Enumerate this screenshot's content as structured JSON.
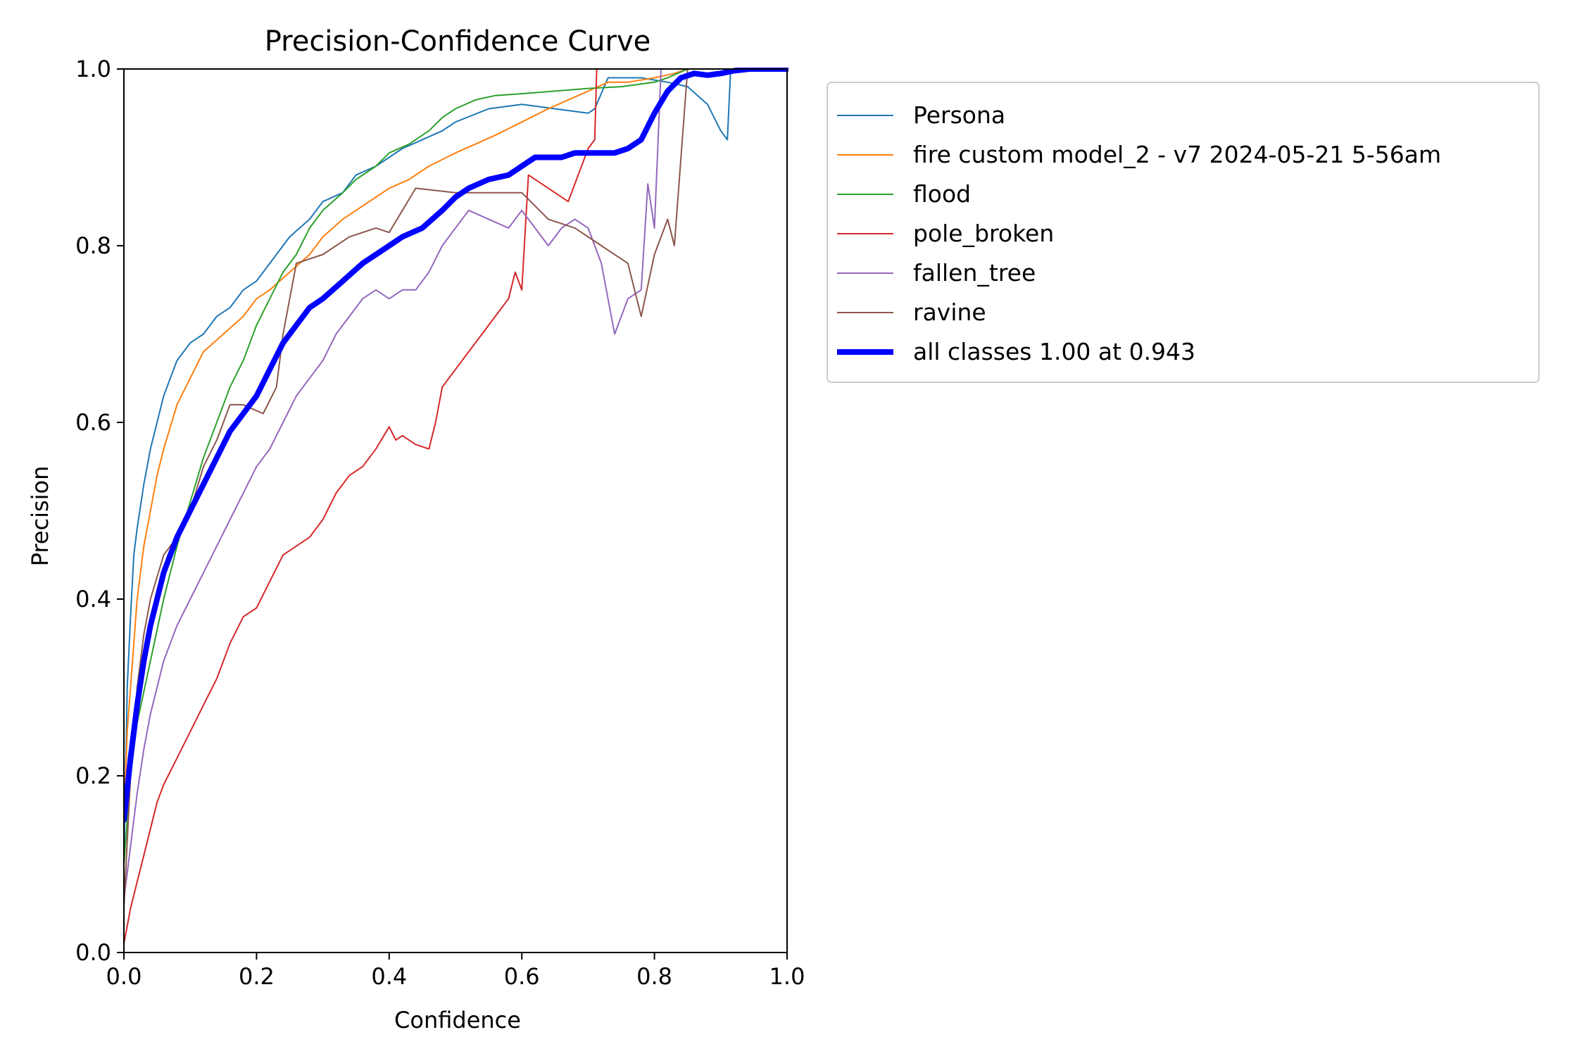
{
  "chart_data": {
    "type": "line",
    "title": "Precision-Confidence Curve",
    "xlabel": "Confidence",
    "ylabel": "Precision",
    "xlim": [
      0.0,
      1.0
    ],
    "ylim": [
      0.0,
      1.0
    ],
    "xticks": [
      "0.0",
      "0.2",
      "0.4",
      "0.6",
      "0.8",
      "1.0"
    ],
    "yticks": [
      "0.0",
      "0.2",
      "0.4",
      "0.6",
      "0.8",
      "1.0"
    ],
    "grid": false,
    "legend_position": "outside upper right",
    "series": [
      {
        "name": "Persona",
        "color": "#1f77b4",
        "points": [
          [
            0.0,
            0.1
          ],
          [
            0.005,
            0.3
          ],
          [
            0.01,
            0.38
          ],
          [
            0.015,
            0.45
          ],
          [
            0.02,
            0.48
          ],
          [
            0.03,
            0.53
          ],
          [
            0.04,
            0.57
          ],
          [
            0.05,
            0.6
          ],
          [
            0.06,
            0.63
          ],
          [
            0.07,
            0.65
          ],
          [
            0.08,
            0.67
          ],
          [
            0.1,
            0.69
          ],
          [
            0.12,
            0.7
          ],
          [
            0.14,
            0.72
          ],
          [
            0.16,
            0.73
          ],
          [
            0.18,
            0.75
          ],
          [
            0.2,
            0.76
          ],
          [
            0.22,
            0.78
          ],
          [
            0.25,
            0.81
          ],
          [
            0.28,
            0.83
          ],
          [
            0.3,
            0.85
          ],
          [
            0.33,
            0.86
          ],
          [
            0.35,
            0.88
          ],
          [
            0.38,
            0.89
          ],
          [
            0.4,
            0.9
          ],
          [
            0.42,
            0.91
          ],
          [
            0.45,
            0.92
          ],
          [
            0.48,
            0.93
          ],
          [
            0.5,
            0.94
          ],
          [
            0.55,
            0.955
          ],
          [
            0.6,
            0.96
          ],
          [
            0.65,
            0.955
          ],
          [
            0.7,
            0.95
          ],
          [
            0.71,
            0.955
          ],
          [
            0.73,
            0.99
          ],
          [
            0.78,
            0.99
          ],
          [
            0.82,
            0.985
          ],
          [
            0.85,
            0.98
          ],
          [
            0.88,
            0.96
          ],
          [
            0.9,
            0.93
          ],
          [
            0.91,
            0.92
          ],
          [
            0.915,
            1.0
          ],
          [
            1.0,
            1.0
          ]
        ]
      },
      {
        "name": "fire custom model_2 - v7 2024-05-21 5-56am",
        "color": "#ff7f0e",
        "points": [
          [
            0.0,
            0.15
          ],
          [
            0.005,
            0.25
          ],
          [
            0.01,
            0.3
          ],
          [
            0.02,
            0.4
          ],
          [
            0.03,
            0.46
          ],
          [
            0.04,
            0.5
          ],
          [
            0.05,
            0.54
          ],
          [
            0.06,
            0.57
          ],
          [
            0.08,
            0.62
          ],
          [
            0.1,
            0.65
          ],
          [
            0.12,
            0.68
          ],
          [
            0.15,
            0.7
          ],
          [
            0.18,
            0.72
          ],
          [
            0.2,
            0.74
          ],
          [
            0.22,
            0.75
          ],
          [
            0.25,
            0.77
          ],
          [
            0.28,
            0.79
          ],
          [
            0.3,
            0.81
          ],
          [
            0.33,
            0.83
          ],
          [
            0.35,
            0.84
          ],
          [
            0.38,
            0.855
          ],
          [
            0.4,
            0.865
          ],
          [
            0.43,
            0.875
          ],
          [
            0.46,
            0.89
          ],
          [
            0.5,
            0.905
          ],
          [
            0.53,
            0.915
          ],
          [
            0.56,
            0.925
          ],
          [
            0.6,
            0.94
          ],
          [
            0.64,
            0.955
          ],
          [
            0.67,
            0.965
          ],
          [
            0.7,
            0.975
          ],
          [
            0.73,
            0.985
          ],
          [
            0.76,
            0.985
          ],
          [
            0.8,
            0.99
          ],
          [
            0.83,
            0.995
          ],
          [
            0.85,
            1.0
          ],
          [
            1.0,
            1.0
          ]
        ]
      },
      {
        "name": "flood",
        "color": "#2ca02c",
        "points": [
          [
            0.0,
            0.1
          ],
          [
            0.01,
            0.2
          ],
          [
            0.02,
            0.26
          ],
          [
            0.04,
            0.33
          ],
          [
            0.06,
            0.4
          ],
          [
            0.08,
            0.46
          ],
          [
            0.1,
            0.51
          ],
          [
            0.12,
            0.56
          ],
          [
            0.14,
            0.6
          ],
          [
            0.16,
            0.64
          ],
          [
            0.18,
            0.67
          ],
          [
            0.2,
            0.71
          ],
          [
            0.22,
            0.74
          ],
          [
            0.24,
            0.77
          ],
          [
            0.26,
            0.79
          ],
          [
            0.28,
            0.82
          ],
          [
            0.3,
            0.84
          ],
          [
            0.33,
            0.86
          ],
          [
            0.35,
            0.875
          ],
          [
            0.38,
            0.89
          ],
          [
            0.4,
            0.905
          ],
          [
            0.43,
            0.915
          ],
          [
            0.46,
            0.93
          ],
          [
            0.48,
            0.945
          ],
          [
            0.5,
            0.955
          ],
          [
            0.53,
            0.965
          ],
          [
            0.56,
            0.97
          ],
          [
            0.6,
            0.972
          ],
          [
            0.65,
            0.975
          ],
          [
            0.7,
            0.978
          ],
          [
            0.75,
            0.98
          ],
          [
            0.8,
            0.985
          ],
          [
            0.82,
            0.99
          ],
          [
            0.85,
            1.0
          ],
          [
            1.0,
            1.0
          ]
        ]
      },
      {
        "name": "pole_broken",
        "color": "#d62728",
        "points": [
          [
            0.0,
            0.01
          ],
          [
            0.01,
            0.05
          ],
          [
            0.02,
            0.08
          ],
          [
            0.03,
            0.11
          ],
          [
            0.04,
            0.14
          ],
          [
            0.05,
            0.17
          ],
          [
            0.06,
            0.19
          ],
          [
            0.08,
            0.22
          ],
          [
            0.1,
            0.25
          ],
          [
            0.12,
            0.28
          ],
          [
            0.14,
            0.31
          ],
          [
            0.16,
            0.35
          ],
          [
            0.18,
            0.38
          ],
          [
            0.2,
            0.39
          ],
          [
            0.22,
            0.42
          ],
          [
            0.24,
            0.45
          ],
          [
            0.26,
            0.46
          ],
          [
            0.28,
            0.47
          ],
          [
            0.3,
            0.49
          ],
          [
            0.32,
            0.52
          ],
          [
            0.34,
            0.54
          ],
          [
            0.36,
            0.55
          ],
          [
            0.38,
            0.57
          ],
          [
            0.4,
            0.595
          ],
          [
            0.41,
            0.58
          ],
          [
            0.42,
            0.585
          ],
          [
            0.44,
            0.575
          ],
          [
            0.46,
            0.57
          ],
          [
            0.47,
            0.6
          ],
          [
            0.48,
            0.64
          ],
          [
            0.5,
            0.66
          ],
          [
            0.52,
            0.68
          ],
          [
            0.54,
            0.7
          ],
          [
            0.56,
            0.72
          ],
          [
            0.58,
            0.74
          ],
          [
            0.59,
            0.77
          ],
          [
            0.6,
            0.75
          ],
          [
            0.61,
            0.88
          ],
          [
            0.63,
            0.87
          ],
          [
            0.65,
            0.86
          ],
          [
            0.67,
            0.85
          ],
          [
            0.68,
            0.87
          ],
          [
            0.7,
            0.91
          ],
          [
            0.71,
            0.92
          ],
          [
            0.713,
            1.0
          ],
          [
            1.0,
            1.0
          ]
        ]
      },
      {
        "name": "fallen_tree",
        "color": "#9467bd",
        "points": [
          [
            0.0,
            0.06
          ],
          [
            0.01,
            0.12
          ],
          [
            0.02,
            0.18
          ],
          [
            0.03,
            0.23
          ],
          [
            0.04,
            0.27
          ],
          [
            0.05,
            0.3
          ],
          [
            0.06,
            0.33
          ],
          [
            0.08,
            0.37
          ],
          [
            0.1,
            0.4
          ],
          [
            0.12,
            0.43
          ],
          [
            0.14,
            0.46
          ],
          [
            0.16,
            0.49
          ],
          [
            0.18,
            0.52
          ],
          [
            0.2,
            0.55
          ],
          [
            0.22,
            0.57
          ],
          [
            0.24,
            0.6
          ],
          [
            0.26,
            0.63
          ],
          [
            0.28,
            0.65
          ],
          [
            0.3,
            0.67
          ],
          [
            0.32,
            0.7
          ],
          [
            0.34,
            0.72
          ],
          [
            0.36,
            0.74
          ],
          [
            0.38,
            0.75
          ],
          [
            0.4,
            0.74
          ],
          [
            0.42,
            0.75
          ],
          [
            0.44,
            0.75
          ],
          [
            0.46,
            0.77
          ],
          [
            0.48,
            0.8
          ],
          [
            0.5,
            0.82
          ],
          [
            0.52,
            0.84
          ],
          [
            0.55,
            0.83
          ],
          [
            0.58,
            0.82
          ],
          [
            0.6,
            0.84
          ],
          [
            0.62,
            0.82
          ],
          [
            0.64,
            0.8
          ],
          [
            0.66,
            0.82
          ],
          [
            0.68,
            0.83
          ],
          [
            0.7,
            0.82
          ],
          [
            0.72,
            0.78
          ],
          [
            0.74,
            0.7
          ],
          [
            0.76,
            0.74
          ],
          [
            0.78,
            0.75
          ],
          [
            0.79,
            0.87
          ],
          [
            0.8,
            0.82
          ],
          [
            0.81,
            1.0
          ],
          [
            1.0,
            1.0
          ]
        ]
      },
      {
        "name": "ravine",
        "color": "#8c564b",
        "points": [
          [
            0.0,
            0.05
          ],
          [
            0.01,
            0.2
          ],
          [
            0.02,
            0.3
          ],
          [
            0.03,
            0.36
          ],
          [
            0.04,
            0.4
          ],
          [
            0.06,
            0.45
          ],
          [
            0.08,
            0.47
          ],
          [
            0.1,
            0.5
          ],
          [
            0.12,
            0.55
          ],
          [
            0.14,
            0.58
          ],
          [
            0.16,
            0.62
          ],
          [
            0.18,
            0.62
          ],
          [
            0.21,
            0.61
          ],
          [
            0.23,
            0.64
          ],
          [
            0.24,
            0.7
          ],
          [
            0.26,
            0.78
          ],
          [
            0.3,
            0.79
          ],
          [
            0.34,
            0.81
          ],
          [
            0.38,
            0.82
          ],
          [
            0.4,
            0.815
          ],
          [
            0.44,
            0.865
          ],
          [
            0.5,
            0.86
          ],
          [
            0.55,
            0.86
          ],
          [
            0.6,
            0.86
          ],
          [
            0.64,
            0.83
          ],
          [
            0.68,
            0.82
          ],
          [
            0.72,
            0.8
          ],
          [
            0.76,
            0.78
          ],
          [
            0.78,
            0.72
          ],
          [
            0.8,
            0.79
          ],
          [
            0.82,
            0.83
          ],
          [
            0.83,
            0.8
          ],
          [
            0.85,
            1.0
          ],
          [
            1.0,
            1.0
          ]
        ]
      },
      {
        "name": "all classes 1.00 at 0.943",
        "color": "#0000ff",
        "points": [
          [
            0.0,
            0.15
          ],
          [
            0.01,
            0.22
          ],
          [
            0.02,
            0.28
          ],
          [
            0.03,
            0.33
          ],
          [
            0.04,
            0.37
          ],
          [
            0.05,
            0.4
          ],
          [
            0.06,
            0.43
          ],
          [
            0.08,
            0.47
          ],
          [
            0.1,
            0.5
          ],
          [
            0.12,
            0.53
          ],
          [
            0.14,
            0.56
          ],
          [
            0.16,
            0.59
          ],
          [
            0.18,
            0.61
          ],
          [
            0.2,
            0.63
          ],
          [
            0.22,
            0.66
          ],
          [
            0.24,
            0.69
          ],
          [
            0.26,
            0.71
          ],
          [
            0.28,
            0.73
          ],
          [
            0.3,
            0.74
          ],
          [
            0.33,
            0.76
          ],
          [
            0.36,
            0.78
          ],
          [
            0.38,
            0.79
          ],
          [
            0.4,
            0.8
          ],
          [
            0.42,
            0.81
          ],
          [
            0.45,
            0.82
          ],
          [
            0.48,
            0.84
          ],
          [
            0.5,
            0.855
          ],
          [
            0.52,
            0.865
          ],
          [
            0.55,
            0.875
          ],
          [
            0.58,
            0.88
          ],
          [
            0.6,
            0.89
          ],
          [
            0.62,
            0.9
          ],
          [
            0.64,
            0.9
          ],
          [
            0.66,
            0.9
          ],
          [
            0.68,
            0.905
          ],
          [
            0.7,
            0.905
          ],
          [
            0.72,
            0.905
          ],
          [
            0.74,
            0.905
          ],
          [
            0.76,
            0.91
          ],
          [
            0.78,
            0.92
          ],
          [
            0.8,
            0.95
          ],
          [
            0.82,
            0.975
          ],
          [
            0.84,
            0.99
          ],
          [
            0.86,
            0.995
          ],
          [
            0.88,
            0.993
          ],
          [
            0.9,
            0.995
          ],
          [
            0.92,
            0.998
          ],
          [
            0.943,
            1.0
          ],
          [
            1.0,
            1.0
          ]
        ]
      }
    ]
  }
}
